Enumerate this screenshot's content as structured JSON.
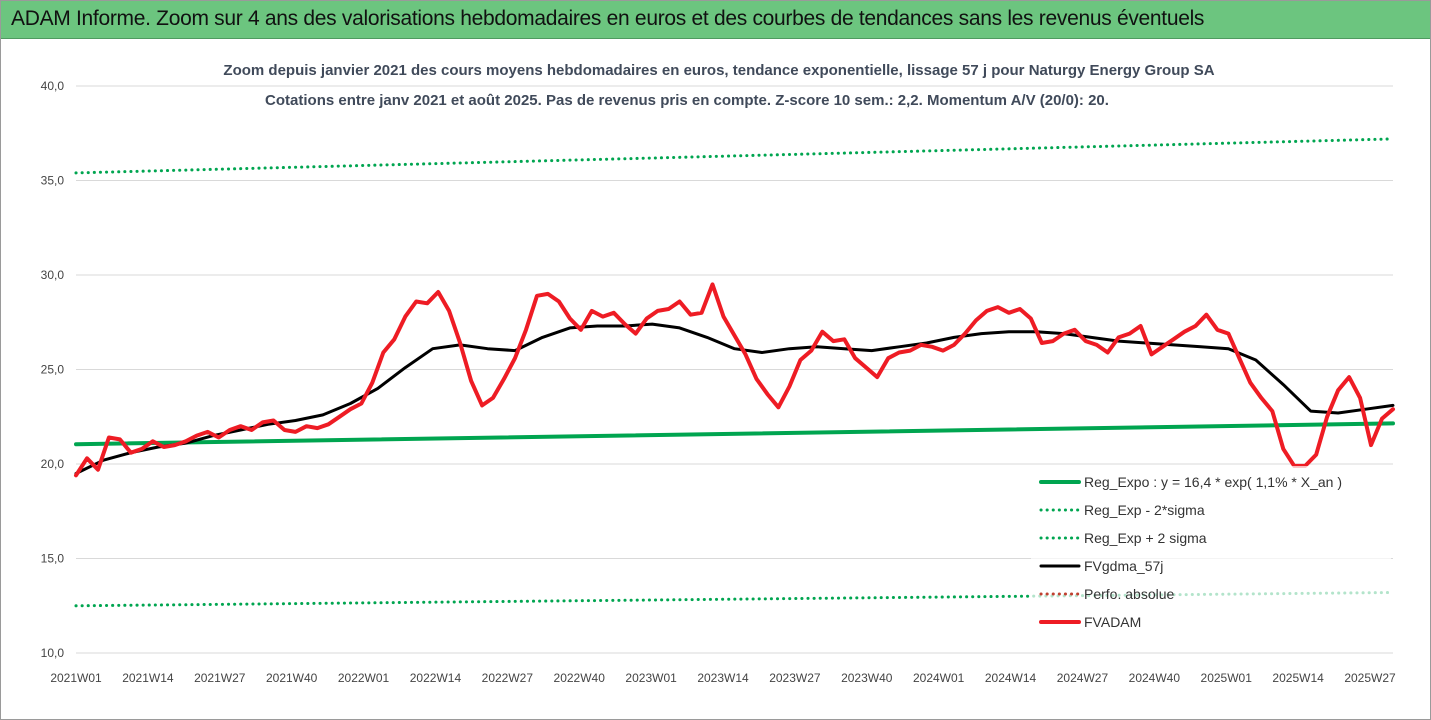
{
  "banner": {
    "title": "ADAM Informe. Zoom sur 4 ans des valorisations hebdomadaires en euros et des courbes de tendances sans les revenus éventuels"
  },
  "chart_data": {
    "type": "line",
    "title": "Zoom depuis janvier 2021 des cours moyens hebdomadaires en euros, tendance exponentielle, lissage 57 j pour Naturgy Energy Group SA",
    "subtitle": "Cotations entre janv 2021 et août 2025. Pas de revenus pris en compte. Z-score 10 sem.: 2,2. Momentum A/V (20/0): 20.",
    "ylim": [
      10,
      40
    ],
    "yticks": [
      "10,0",
      "15,0",
      "20,0",
      "25,0",
      "30,0",
      "35,0",
      "40,0"
    ],
    "x_ticks": [
      "2021W01",
      "2021W14",
      "2021W27",
      "2021W40",
      "2022W01",
      "2022W14",
      "2022W27",
      "2022W40",
      "2023W01",
      "2023W14",
      "2023W27",
      "2023W40",
      "2024W01",
      "2024W14",
      "2024W27",
      "2024W40",
      "2025W01",
      "2025W14",
      "2025W27"
    ],
    "grid": "horizontal",
    "legend_position": "bottom-right",
    "series": [
      {
        "name": "Reg_Expo : y = 16,4 * exp( 1,1% *  X_an )",
        "color": "#00a550",
        "style": "solid",
        "points": [
          [
            0,
            21.05
          ],
          [
            240,
            22.15
          ]
        ]
      },
      {
        "name": "Reg_Exp - 2*sigma",
        "color": "#00a550",
        "style": "dotted",
        "points": [
          [
            0,
            12.5
          ],
          [
            240,
            13.2
          ]
        ]
      },
      {
        "name": "Reg_Exp + 2 sigma",
        "color": "#00a550",
        "style": "dotted",
        "points": [
          [
            0,
            35.4
          ],
          [
            240,
            37.2
          ]
        ]
      },
      {
        "name": "FVgdma_57j",
        "color": "#000000",
        "style": "solid",
        "points": [
          [
            0,
            19.5
          ],
          [
            5,
            20.2
          ],
          [
            10,
            20.6
          ],
          [
            15,
            20.9
          ],
          [
            20,
            21.1
          ],
          [
            25,
            21.5
          ],
          [
            30,
            21.8
          ],
          [
            35,
            22.1
          ],
          [
            40,
            22.3
          ],
          [
            45,
            22.6
          ],
          [
            50,
            23.2
          ],
          [
            55,
            24.0
          ],
          [
            60,
            25.1
          ],
          [
            65,
            26.1
          ],
          [
            70,
            26.3
          ],
          [
            75,
            26.1
          ],
          [
            80,
            26.0
          ],
          [
            85,
            26.7
          ],
          [
            90,
            27.2
          ],
          [
            95,
            27.3
          ],
          [
            100,
            27.3
          ],
          [
            105,
            27.4
          ],
          [
            110,
            27.2
          ],
          [
            115,
            26.7
          ],
          [
            120,
            26.1
          ],
          [
            125,
            25.9
          ],
          [
            130,
            26.1
          ],
          [
            135,
            26.2
          ],
          [
            140,
            26.1
          ],
          [
            145,
            26.0
          ],
          [
            150,
            26.2
          ],
          [
            155,
            26.4
          ],
          [
            160,
            26.7
          ],
          [
            165,
            26.9
          ],
          [
            170,
            27.0
          ],
          [
            175,
            27.0
          ],
          [
            180,
            26.9
          ],
          [
            185,
            26.7
          ],
          [
            190,
            26.5
          ],
          [
            195,
            26.4
          ],
          [
            200,
            26.3
          ],
          [
            205,
            26.2
          ],
          [
            210,
            26.1
          ],
          [
            215,
            25.5
          ],
          [
            220,
            24.2
          ],
          [
            225,
            22.8
          ],
          [
            230,
            22.7
          ],
          [
            235,
            22.9
          ],
          [
            240,
            23.1
          ]
        ]
      },
      {
        "name": "Perfo. absolue",
        "color": "#c04030",
        "style": "dotted",
        "points": []
      },
      {
        "name": "FVADAM",
        "color": "#ee1c24",
        "style": "solid",
        "points": [
          [
            0,
            19.4
          ],
          [
            2,
            20.3
          ],
          [
            4,
            19.7
          ],
          [
            6,
            21.4
          ],
          [
            8,
            21.3
          ],
          [
            10,
            20.6
          ],
          [
            12,
            20.8
          ],
          [
            14,
            21.2
          ],
          [
            16,
            20.9
          ],
          [
            18,
            21.0
          ],
          [
            20,
            21.2
          ],
          [
            22,
            21.5
          ],
          [
            24,
            21.7
          ],
          [
            26,
            21.4
          ],
          [
            28,
            21.8
          ],
          [
            30,
            22.0
          ],
          [
            32,
            21.8
          ],
          [
            34,
            22.2
          ],
          [
            36,
            22.3
          ],
          [
            38,
            21.8
          ],
          [
            40,
            21.7
          ],
          [
            42,
            22.0
          ],
          [
            44,
            21.9
          ],
          [
            46,
            22.1
          ],
          [
            48,
            22.5
          ],
          [
            50,
            22.9
          ],
          [
            52,
            23.2
          ],
          [
            54,
            24.3
          ],
          [
            56,
            25.9
          ],
          [
            58,
            26.6
          ],
          [
            60,
            27.8
          ],
          [
            62,
            28.6
          ],
          [
            64,
            28.5
          ],
          [
            66,
            29.1
          ],
          [
            68,
            28.1
          ],
          [
            70,
            26.4
          ],
          [
            72,
            24.4
          ],
          [
            74,
            23.1
          ],
          [
            76,
            23.5
          ],
          [
            78,
            24.5
          ],
          [
            80,
            25.6
          ],
          [
            82,
            27.1
          ],
          [
            84,
            28.9
          ],
          [
            86,
            29.0
          ],
          [
            88,
            28.6
          ],
          [
            90,
            27.7
          ],
          [
            92,
            27.1
          ],
          [
            94,
            28.1
          ],
          [
            96,
            27.8
          ],
          [
            98,
            28.0
          ],
          [
            100,
            27.4
          ],
          [
            102,
            26.9
          ],
          [
            104,
            27.7
          ],
          [
            106,
            28.1
          ],
          [
            108,
            28.2
          ],
          [
            110,
            28.6
          ],
          [
            112,
            27.9
          ],
          [
            114,
            28.0
          ],
          [
            116,
            29.5
          ],
          [
            118,
            27.8
          ],
          [
            120,
            26.8
          ],
          [
            122,
            25.8
          ],
          [
            124,
            24.5
          ],
          [
            126,
            23.7
          ],
          [
            128,
            23.0
          ],
          [
            130,
            24.1
          ],
          [
            132,
            25.5
          ],
          [
            134,
            26.0
          ],
          [
            136,
            27.0
          ],
          [
            138,
            26.5
          ],
          [
            140,
            26.6
          ],
          [
            142,
            25.6
          ],
          [
            144,
            25.1
          ],
          [
            146,
            24.6
          ],
          [
            148,
            25.6
          ],
          [
            150,
            25.9
          ],
          [
            152,
            26.0
          ],
          [
            154,
            26.3
          ],
          [
            156,
            26.2
          ],
          [
            158,
            26.0
          ],
          [
            160,
            26.3
          ],
          [
            162,
            26.9
          ],
          [
            164,
            27.6
          ],
          [
            166,
            28.1
          ],
          [
            168,
            28.3
          ],
          [
            170,
            28.0
          ],
          [
            172,
            28.2
          ],
          [
            174,
            27.7
          ],
          [
            176,
            26.4
          ],
          [
            178,
            26.5
          ],
          [
            180,
            26.9
          ],
          [
            182,
            27.1
          ],
          [
            184,
            26.5
          ],
          [
            186,
            26.3
          ],
          [
            188,
            25.9
          ],
          [
            190,
            26.7
          ],
          [
            192,
            26.9
          ],
          [
            194,
            27.3
          ],
          [
            196,
            25.8
          ],
          [
            198,
            26.2
          ],
          [
            200,
            26.6
          ],
          [
            202,
            27.0
          ],
          [
            204,
            27.3
          ],
          [
            206,
            27.9
          ],
          [
            208,
            27.1
          ],
          [
            210,
            26.9
          ],
          [
            212,
            25.6
          ],
          [
            214,
            24.3
          ],
          [
            216,
            23.5
          ],
          [
            218,
            22.8
          ],
          [
            220,
            20.8
          ],
          [
            222,
            19.9
          ],
          [
            224,
            19.9
          ],
          [
            226,
            20.5
          ],
          [
            228,
            22.5
          ],
          [
            230,
            23.9
          ],
          [
            232,
            24.6
          ],
          [
            234,
            23.5
          ],
          [
            236,
            21.0
          ],
          [
            238,
            22.4
          ],
          [
            240,
            22.9
          ]
        ]
      }
    ]
  }
}
